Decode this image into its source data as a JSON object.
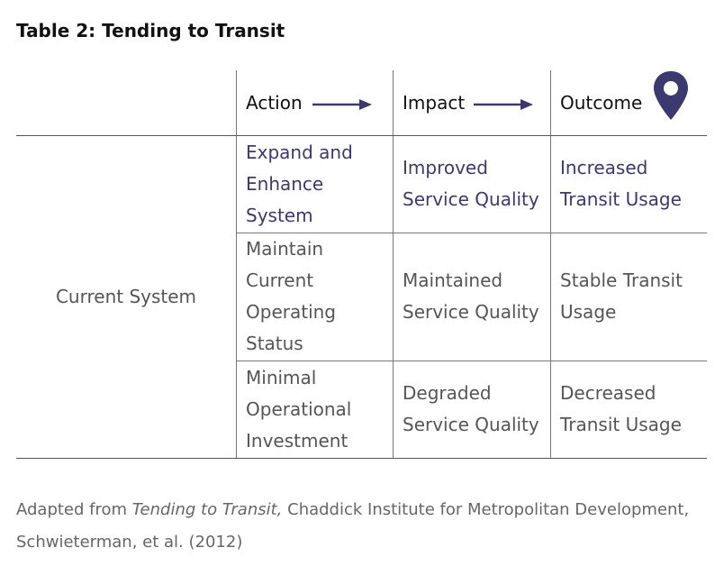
{
  "title": "Table 2: Tending to Transit",
  "table": {
    "header": [
      "Action",
      "Impact",
      "Outcome"
    ],
    "row_label": "Current System",
    "rows": [
      [
        [
          "Expand and",
          "Enhance",
          "System"
        ],
        [
          "Improved",
          "Service Quality"
        ],
        [
          "Increased",
          "Transit Usage"
        ]
      ],
      [
        [
          "Maintain",
          "Current",
          "Operating",
          "Status"
        ],
        [
          "Maintained",
          "Service Quality"
        ],
        [
          "Stable Transit",
          "Usage"
        ]
      ],
      [
        [
          "Minimal",
          "Operational",
          "Investment"
        ],
        [
          "Degraded",
          "Service Quality"
        ],
        [
          "Decreased",
          "Transit Usage"
        ]
      ]
    ]
  },
  "caption": {
    "prefix": "Adapted from ",
    "source": "Tending to Transit,",
    "suffix": " Chaddick Institute for Metropolitan Development, Schwieterman, et al. (2012)"
  }
}
